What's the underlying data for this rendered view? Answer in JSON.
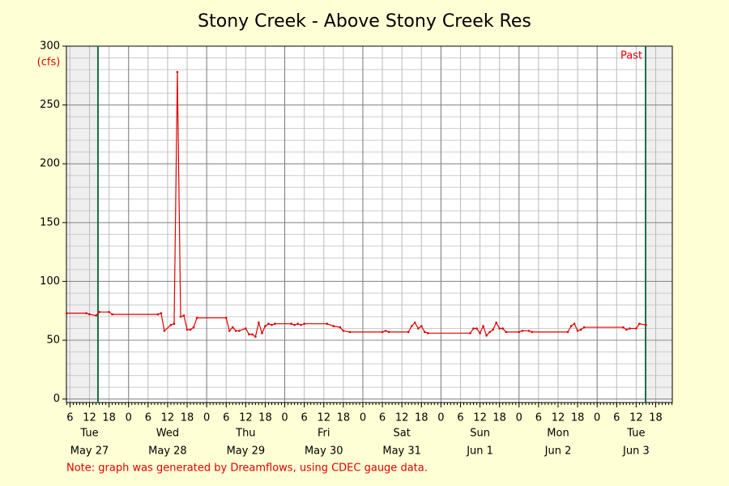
{
  "chart_data": {
    "type": "line",
    "title": "Stony Creek - Above Stony Creek Res",
    "y_label": "(cfs)",
    "marker_label": "Past",
    "note": "Note: graph was generated by Dreamflows, using CDEC gauge data.",
    "xlim": [
      4.9,
      191.1
    ],
    "ylim": [
      -3,
      300
    ],
    "yticks": [
      0,
      50,
      100,
      150,
      200,
      250,
      300
    ],
    "y_minor_ticks": [
      0,
      10,
      20,
      30,
      40,
      50,
      60,
      70,
      80,
      90,
      100,
      110,
      120,
      130,
      140,
      150,
      160,
      170,
      180,
      190,
      200,
      210,
      220,
      230,
      240,
      250,
      260,
      270,
      280,
      290,
      300
    ],
    "xticks": [
      6,
      12,
      18,
      {
        "value": 24,
        "label": "0"
      },
      {
        "value": 30,
        "label": "6"
      },
      {
        "value": 36,
        "label": "12"
      },
      {
        "value": 42,
        "label": "18"
      },
      {
        "value": 48,
        "label": "0"
      },
      {
        "value": 54,
        "label": "6"
      },
      {
        "value": 60,
        "label": "12"
      },
      {
        "value": 66,
        "label": "18"
      },
      {
        "value": 72,
        "label": "0"
      },
      {
        "value": 78,
        "label": "6"
      },
      {
        "value": 84,
        "label": "12"
      },
      {
        "value": 90,
        "label": "18"
      },
      {
        "value": 96,
        "label": "0"
      },
      {
        "value": 102,
        "label": "6"
      },
      {
        "value": 108,
        "label": "12"
      },
      {
        "value": 114,
        "label": "18"
      },
      {
        "value": 120,
        "label": "0"
      },
      {
        "value": 126,
        "label": "6"
      },
      {
        "value": 132,
        "label": "12"
      },
      {
        "value": 138,
        "label": "18"
      },
      {
        "value": 144,
        "label": "0"
      },
      {
        "value": 150,
        "label": "6"
      },
      {
        "value": 156,
        "label": "12"
      },
      {
        "value": 162,
        "label": "18"
      },
      {
        "value": 168,
        "label": "0"
      },
      {
        "value": 174,
        "label": "6"
      },
      {
        "value": 180,
        "label": "12"
      },
      {
        "value": 186,
        "label": "18"
      }
    ],
    "days": [
      {
        "weekday": "Tue",
        "date": "May 27"
      },
      {
        "weekday": "Wed",
        "date": "May 28"
      },
      {
        "weekday": "Thu",
        "date": "May 29"
      },
      {
        "weekday": "Fri",
        "date": "May 30"
      },
      {
        "weekday": "Sat",
        "date": "May 31"
      },
      {
        "weekday": "Sun",
        "date": "Jun 1"
      },
      {
        "weekday": "Mon",
        "date": "Jun 2"
      },
      {
        "weekday": "Tue",
        "date": "Jun 3"
      }
    ],
    "markers": [
      14.6,
      182.9
    ],
    "grid": true,
    "series": [
      {
        "color": "#e00000",
        "x": [
          5,
          11,
          12,
          14,
          15,
          18,
          19,
          33,
          34,
          35,
          37,
          38,
          39,
          40,
          41,
          42,
          43,
          44,
          45,
          54,
          55,
          56,
          57,
          58,
          60,
          61,
          62,
          63,
          64,
          65,
          66,
          67,
          68,
          69,
          74,
          75,
          76,
          77,
          78,
          85,
          87,
          89,
          90,
          92,
          102,
          103,
          104,
          110,
          111,
          112,
          113,
          114,
          115,
          116,
          129,
          130,
          131,
          132,
          133,
          134,
          135,
          136,
          137,
          138,
          139,
          140,
          144,
          145,
          147,
          148,
          159,
          160,
          161,
          162,
          163,
          164,
          176,
          177,
          178,
          180,
          181,
          183
        ],
        "values": [
          73,
          73,
          72,
          71,
          74,
          74,
          72,
          72,
          73,
          58,
          63,
          64,
          278,
          70,
          71,
          59,
          59,
          61,
          69,
          69,
          58,
          61,
          58,
          58,
          60,
          55,
          55,
          53,
          65,
          56,
          62,
          64,
          63,
          64,
          64,
          63,
          64,
          63,
          64,
          64,
          62,
          61,
          58,
          57,
          57,
          58,
          57,
          57,
          62,
          65,
          60,
          62,
          57,
          56,
          56,
          60,
          60,
          56,
          62,
          54,
          57,
          59,
          65,
          60,
          60,
          57,
          57,
          58,
          58,
          57,
          57,
          62,
          64,
          58,
          59,
          61,
          61,
          59,
          60,
          60,
          64,
          63
        ]
      }
    ]
  }
}
